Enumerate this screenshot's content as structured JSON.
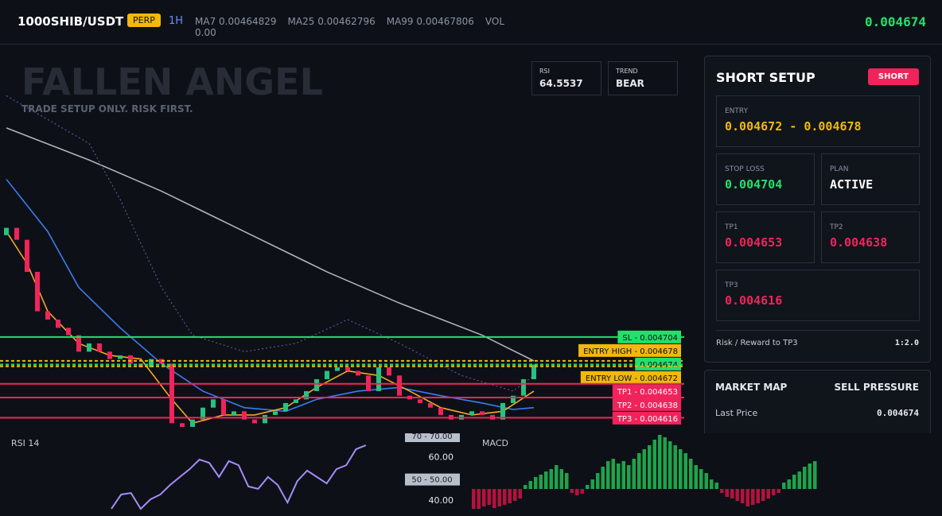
{
  "header": {
    "symbol": "1000SHIB/USDT",
    "badge": "PERP",
    "interval": "1H",
    "indicators": [
      "MA7 0.00464829",
      "MA25 0.00462796",
      "MA99 0.00467806",
      "VOL 0.00"
    ],
    "price": "0.004674"
  },
  "watermark": {
    "title": "FALLEN ANGEL",
    "subtitle": "TRADE SETUP ONLY. RISK FIRST."
  },
  "stats": [
    {
      "label": "RSI",
      "value": "64.5537"
    },
    {
      "label": "TREND",
      "value": "BEAR"
    }
  ],
  "setup": {
    "title": "SHORT SETUP",
    "badge": "SHORT",
    "entry": {
      "label": "ENTRY",
      "value": "0.004672 - 0.004678"
    },
    "stop_loss": {
      "label": "STOP LOSS",
      "value": "0.004704"
    },
    "plan": {
      "label": "PLAN",
      "value": "ACTIVE"
    },
    "tp1": {
      "label": "TP1",
      "value": "0.004653"
    },
    "tp2": {
      "label": "TP2",
      "value": "0.004638"
    },
    "tp3": {
      "label": "TP3",
      "value": "0.004616"
    },
    "risk_reward": {
      "label": "Risk / Reward to TP3",
      "value": "1:2.0"
    }
  },
  "market_map": {
    "title": "MARKET MAP",
    "status": "SELL PRESSURE",
    "last_price": {
      "label": "Last Price",
      "value": "0.004674"
    }
  },
  "chart_data": [
    {
      "type": "candlestick",
      "ylim": [
        0.004599,
        0.005022
      ],
      "colors": {
        "up": "#26c281",
        "down": "#f0245b"
      },
      "open": [
        0.004815,
        0.004823,
        0.00481,
        0.004775,
        0.004732,
        0.004723,
        0.004714,
        0.004706,
        0.004688,
        0.004697,
        0.004688,
        0.00468,
        0.004684,
        0.004675,
        0.004671,
        0.00468,
        0.004675,
        0.00461,
        0.004606,
        0.004614,
        0.004627,
        0.004636,
        0.004619,
        0.004623,
        0.004614,
        0.00461,
        0.004619,
        0.004623,
        0.004632,
        0.004636,
        0.004645,
        0.004658,
        0.004667,
        0.004671,
        0.004667,
        0.004662,
        0.004645,
        0.004671,
        0.004662,
        0.00464,
        0.004636,
        0.004632,
        0.004627,
        0.004619,
        0.004614,
        0.004619,
        0.004623,
        0.004619,
        0.004614,
        0.004632,
        0.00464,
        0.004658
      ],
      "close": [
        0.004823,
        0.00481,
        0.004775,
        0.004732,
        0.004723,
        0.004714,
        0.004706,
        0.004688,
        0.004697,
        0.004688,
        0.00468,
        0.004684,
        0.004675,
        0.004671,
        0.00468,
        0.004675,
        0.00461,
        0.004606,
        0.004614,
        0.004627,
        0.004636,
        0.004619,
        0.004623,
        0.004614,
        0.00461,
        0.004619,
        0.004623,
        0.004632,
        0.004636,
        0.004645,
        0.004658,
        0.004667,
        0.004671,
        0.004667,
        0.004662,
        0.004645,
        0.004671,
        0.004662,
        0.00464,
        0.004636,
        0.004632,
        0.004627,
        0.004619,
        0.004614,
        0.004619,
        0.004623,
        0.004619,
        0.004614,
        0.004632,
        0.00464,
        0.004658,
        0.004674
      ],
      "lines": [
        {
          "color": "#b0b3b8",
          "dash": false,
          "x": [
            0,
            8,
            15,
            23,
            31,
            38,
            46,
            51
          ],
          "values": [
            0.004932,
            0.004897,
            0.004863,
            0.004819,
            0.004775,
            0.004741,
            0.004706,
            0.004678
          ]
        },
        {
          "color": "#3d7bf0",
          "dash": false,
          "x": [
            0,
            4,
            7,
            11,
            15,
            19,
            23,
            27,
            30,
            34,
            38,
            42,
            46,
            49,
            51
          ],
          "values": [
            0.004876,
            0.004819,
            0.004758,
            0.004714,
            0.004675,
            0.004645,
            0.004627,
            0.004623,
            0.004636,
            0.004645,
            0.004649,
            0.00464,
            0.004632,
            0.004625,
            0.004627
          ]
        },
        {
          "color": "#f5a623",
          "dash": false,
          "x": [
            0,
            2,
            4,
            7,
            10,
            13,
            16,
            18,
            21,
            24,
            27,
            30,
            33,
            36,
            39,
            42,
            45,
            48,
            51
          ],
          "values": [
            0.004819,
            0.004784,
            0.004732,
            0.004697,
            0.004684,
            0.00468,
            0.004636,
            0.00461,
            0.004619,
            0.004619,
            0.004627,
            0.004649,
            0.004667,
            0.004662,
            0.004645,
            0.004627,
            0.004619,
            0.004623,
            0.004645
          ]
        },
        {
          "color": "#6b5bb5",
          "dash": true,
          "x": [
            0,
            8,
            11,
            15,
            18,
            23,
            28,
            33,
            38,
            44,
            49,
            51
          ],
          "values": [
            0.004967,
            0.004915,
            0.004854,
            0.004758,
            0.004706,
            0.004688,
            0.004697,
            0.004723,
            0.004697,
            0.004662,
            0.004645,
            0.004662
          ]
        }
      ],
      "levels": [
        {
          "value": 0.004704,
          "tag": "SL - 0.004704",
          "color": "#22e06b",
          "text_color": "#0b0e14",
          "dash": false
        },
        {
          "value": 0.004678,
          "tag": "ENTRY HIGH - 0.004678",
          "color": "#f0b90b",
          "text_color": "#0b0e14",
          "dash": true
        },
        {
          "value": 0.004674,
          "tag": "0.004674",
          "color": "#22e06b",
          "text_color": "#0b0e14",
          "dash": true
        },
        {
          "value": 0.004672,
          "tag": "ENTRY LOW - 0.004672",
          "color": "#f0b90b",
          "text_color": "#0b0e14",
          "dash": true
        },
        {
          "value": 0.004653,
          "tag": "TP1 - 0.004653",
          "color": "#f0245b",
          "text_color": "#ffffff",
          "dash": false
        },
        {
          "value": 0.004638,
          "tag": "TP2 - 0.004638",
          "color": "#f0245b",
          "text_color": "#ffffff",
          "dash": false
        },
        {
          "value": 0.004616,
          "tag": "TP3 - 0.004616",
          "color": "#f0245b",
          "text_color": "#ffffff",
          "dash": false
        }
      ]
    },
    {
      "type": "line",
      "title": "RSI 14",
      "ylim": [
        33,
        71.1
      ],
      "color": "#a78bfa",
      "yticks": [
        {
          "value": 70,
          "label": "70.00"
        },
        {
          "value": 60,
          "label": "60.00"
        },
        {
          "value": 50,
          "label": "50.00"
        },
        {
          "value": 40,
          "label": "40.00"
        }
      ],
      "tags": [
        {
          "value": 70,
          "label": "70 - 70.00"
        },
        {
          "value": 50,
          "label": "50 - 50.00"
        }
      ],
      "values": [
        36.3,
        42.9,
        43.6,
        36.3,
        40.7,
        42.9,
        47.3,
        51.0,
        54.6,
        59.0,
        57.5,
        51.0,
        58.3,
        56.4,
        46.6,
        45.5,
        51.0,
        47.3,
        39.2,
        49.1,
        53.9,
        51.0,
        48.0,
        54.6,
        56.4,
        63.8,
        65.6
      ]
    },
    {
      "type": "bar",
      "title": "MACD",
      "ylim": [
        -3.4e-06,
        7e-06
      ],
      "colors": {
        "up": "#1fa34a",
        "down": "#b3123f"
      },
      "values": [
        -2.5e-06,
        -2.5e-06,
        -2.2e-06,
        -2e-06,
        -2.4e-06,
        -2.2e-06,
        -2e-06,
        -1.8e-06,
        -1.5e-06,
        -1.2e-06,
        5e-07,
        1e-06,
        1.5e-06,
        1.8e-06,
        2.2e-06,
        2.5e-06,
        3e-06,
        2.5e-06,
        2e-06,
        -5e-07,
        -8e-07,
        -6e-07,
        5e-07,
        1.2e-06,
        2e-06,
        2.8e-06,
        3.5e-06,
        3.8e-06,
        3.2e-06,
        3.5e-06,
        3e-06,
        3.8e-06,
        4.5e-06,
        5e-06,
        5.5e-06,
        6.2e-06,
        6.8e-06,
        6.5e-06,
        6e-06,
        5.5e-06,
        5e-06,
        4.5e-06,
        3.8e-06,
        3e-06,
        2.5e-06,
        2e-06,
        1.2e-06,
        8e-07,
        -5e-07,
        -1e-06,
        -1.2e-06,
        -1.5e-06,
        -1.8e-06,
        -2.2e-06,
        -2e-06,
        -1.8e-06,
        -1.5e-06,
        -1.2e-06,
        -8e-07,
        -5e-07,
        8e-07,
        1.2e-06,
        1.8e-06,
        2.2e-06,
        2.8e-06,
        3.2e-06,
        3.5e-06
      ]
    }
  ]
}
